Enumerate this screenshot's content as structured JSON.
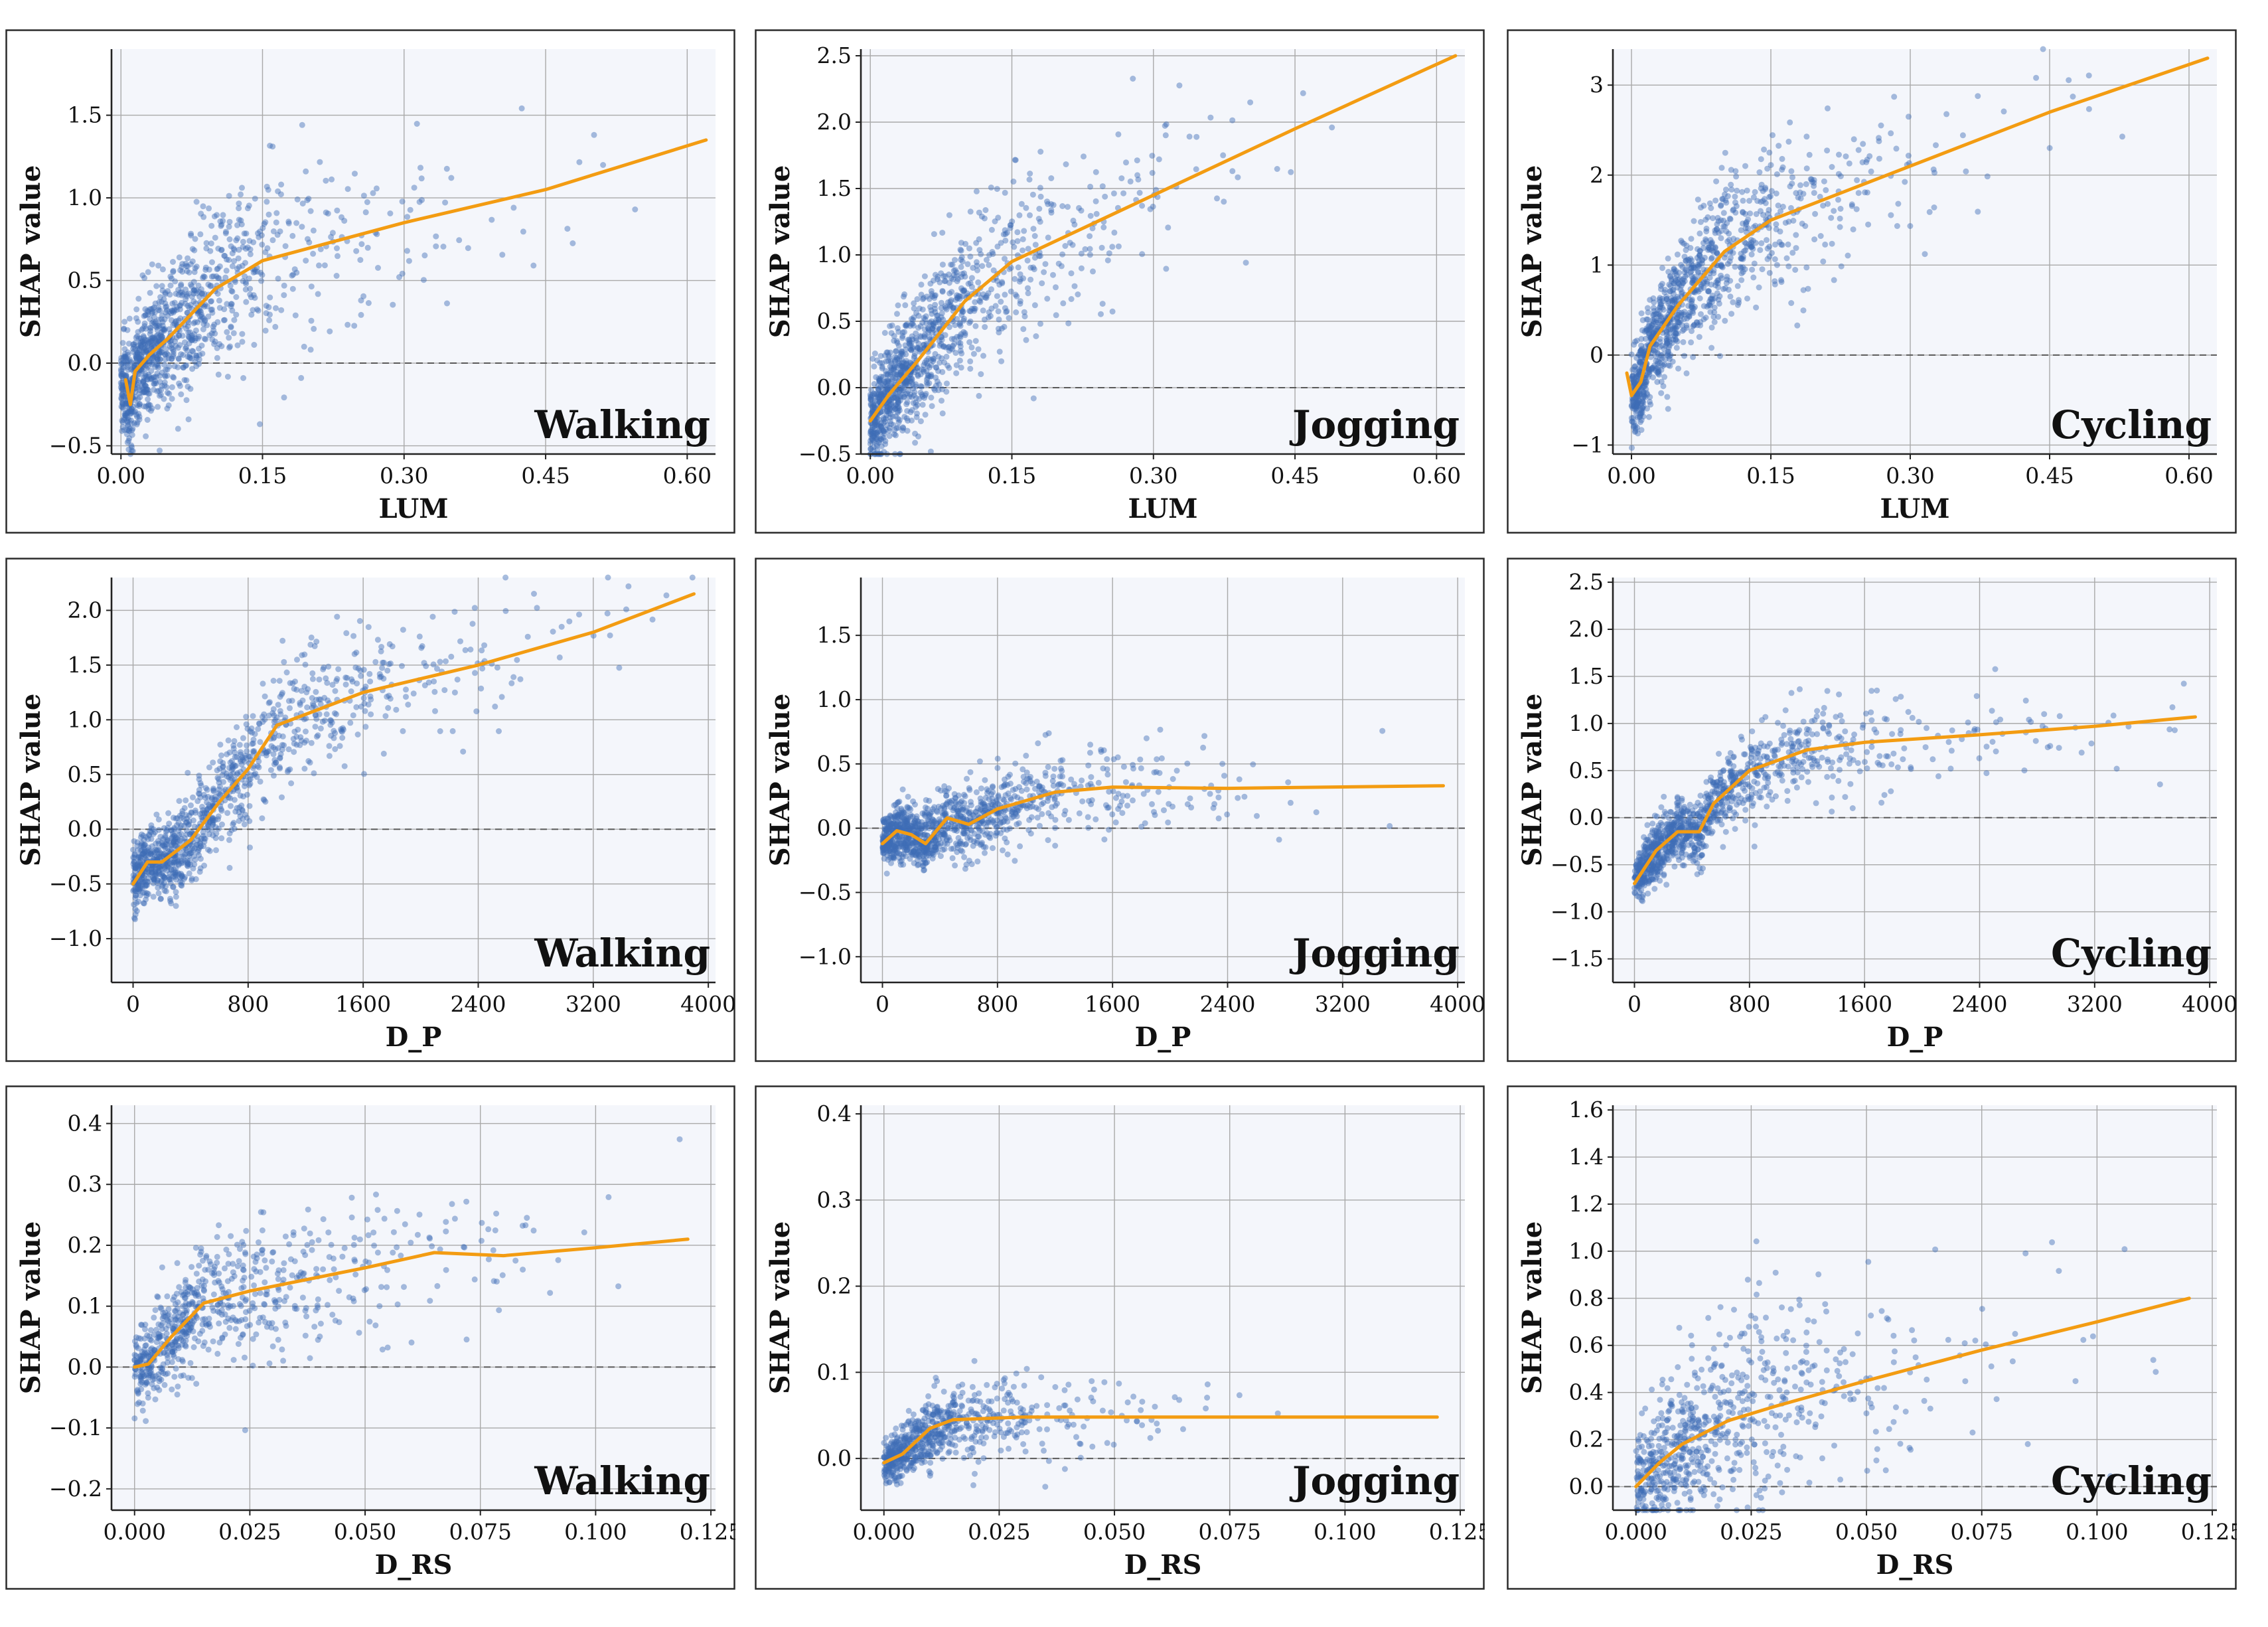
{
  "colors": {
    "points": "#3f6db6",
    "trend": "#f39c12",
    "background": "#f4f6fb"
  },
  "chart_data": [
    {
      "id": "walk-lum",
      "type": "scatter",
      "activity": "Walking",
      "xlabel": "LUM",
      "ylabel": "SHAP value",
      "xlim": [
        -0.01,
        0.63
      ],
      "ylim": [
        -0.55,
        1.9
      ],
      "xticks": [
        0.0,
        0.15,
        0.3,
        0.45,
        0.6
      ],
      "xtick_labels": [
        "0.00",
        "0.15",
        "0.30",
        "0.45",
        "0.60"
      ],
      "yticks": [
        -0.5,
        0.0,
        0.5,
        1.0,
        1.5
      ],
      "ytick_labels": [
        "−0.5",
        "0.0",
        "0.5",
        "1.0",
        "1.5"
      ],
      "trend": [
        [
          0.005,
          -0.1
        ],
        [
          0.01,
          -0.25
        ],
        [
          0.015,
          -0.05
        ],
        [
          0.03,
          0.05
        ],
        [
          0.05,
          0.15
        ],
        [
          0.1,
          0.45
        ],
        [
          0.15,
          0.62
        ],
        [
          0.3,
          0.85
        ],
        [
          0.45,
          1.05
        ],
        [
          0.62,
          1.35
        ]
      ],
      "spread": {
        "xmax": 0.62,
        "xscale": 0.08,
        "noise": 0.28,
        "count": 1100
      }
    },
    {
      "id": "jog-lum",
      "type": "scatter",
      "activity": "Jogging",
      "xlabel": "LUM",
      "ylabel": "SHAP value",
      "xlim": [
        -0.01,
        0.63
      ],
      "ylim": [
        -0.5,
        2.55
      ],
      "xticks": [
        0.0,
        0.15,
        0.3,
        0.45,
        0.6
      ],
      "xtick_labels": [
        "0.00",
        "0.15",
        "0.30",
        "0.45",
        "0.60"
      ],
      "yticks": [
        -0.5,
        0.0,
        0.5,
        1.0,
        1.5,
        2.0,
        2.5
      ],
      "ytick_labels": [
        "−0.5",
        "0.0",
        "0.5",
        "1.0",
        "1.5",
        "2.0",
        "2.5"
      ],
      "trend": [
        [
          0.0,
          -0.25
        ],
        [
          0.02,
          -0.05
        ],
        [
          0.05,
          0.2
        ],
        [
          0.1,
          0.65
        ],
        [
          0.15,
          0.95
        ],
        [
          0.3,
          1.45
        ],
        [
          0.45,
          1.95
        ],
        [
          0.62,
          2.5
        ]
      ],
      "spread": {
        "xmax": 0.62,
        "xscale": 0.08,
        "noise": 0.35,
        "count": 1100
      }
    },
    {
      "id": "cyc-lum",
      "type": "scatter",
      "activity": "Cycling",
      "xlabel": "LUM",
      "ylabel": "SHAP value",
      "xlim": [
        -0.02,
        0.63
      ],
      "ylim": [
        -1.1,
        3.4
      ],
      "xticks": [
        0.0,
        0.15,
        0.3,
        0.45,
        0.6
      ],
      "xtick_labels": [
        "0.00",
        "0.15",
        "0.30",
        "0.45",
        "0.60"
      ],
      "yticks": [
        -1,
        0,
        1,
        2,
        3
      ],
      "ytick_labels": [
        "−1",
        "0",
        "1",
        "2",
        "3"
      ],
      "trend": [
        [
          -0.005,
          -0.2
        ],
        [
          0.0,
          -0.45
        ],
        [
          0.01,
          -0.3
        ],
        [
          0.02,
          0.1
        ],
        [
          0.05,
          0.55
        ],
        [
          0.1,
          1.15
        ],
        [
          0.15,
          1.5
        ],
        [
          0.3,
          2.1
        ],
        [
          0.45,
          2.7
        ],
        [
          0.62,
          3.3
        ]
      ],
      "spread": {
        "xmax": 0.62,
        "xscale": 0.08,
        "noise": 0.45,
        "count": 1100
      }
    },
    {
      "id": "walk-dp",
      "type": "scatter",
      "activity": "Walking",
      "xlabel": "D_P",
      "ylabel": "SHAP value",
      "xlim": [
        -150,
        4050
      ],
      "ylim": [
        -1.4,
        2.3
      ],
      "xticks": [
        0,
        800,
        1600,
        2400,
        3200,
        4000
      ],
      "xtick_labels": [
        "0",
        "800",
        "1600",
        "2400",
        "3200",
        "4000"
      ],
      "yticks": [
        -1.0,
        -0.5,
        0.0,
        0.5,
        1.0,
        1.5,
        2.0
      ],
      "ytick_labels": [
        "−1.0",
        "−0.5",
        "0.0",
        "0.5",
        "1.0",
        "1.5",
        "2.0"
      ],
      "trend": [
        [
          0,
          -0.5
        ],
        [
          100,
          -0.3
        ],
        [
          200,
          -0.3
        ],
        [
          400,
          -0.1
        ],
        [
          600,
          0.25
        ],
        [
          800,
          0.55
        ],
        [
          1000,
          0.95
        ],
        [
          1600,
          1.25
        ],
        [
          2400,
          1.5
        ],
        [
          3200,
          1.8
        ],
        [
          3900,
          2.15
        ]
      ],
      "spread": {
        "xmax": 3900,
        "xscale": 650,
        "noise": 0.28,
        "count": 1100
      }
    },
    {
      "id": "jog-dp",
      "type": "scatter",
      "activity": "Jogging",
      "xlabel": "D_P",
      "ylabel": "SHAP value",
      "xlim": [
        -150,
        4050
      ],
      "ylim": [
        -1.2,
        1.95
      ],
      "xticks": [
        0,
        800,
        1600,
        2400,
        3200,
        4000
      ],
      "xtick_labels": [
        "0",
        "800",
        "1600",
        "2400",
        "3200",
        "4000"
      ],
      "yticks": [
        -1.0,
        -0.5,
        0.0,
        0.5,
        1.0,
        1.5
      ],
      "ytick_labels": [
        "−1.0",
        "−0.5",
        "0.0",
        "0.5",
        "1.0",
        "1.5"
      ],
      "trend": [
        [
          0,
          -0.12
        ],
        [
          100,
          -0.02
        ],
        [
          200,
          -0.05
        ],
        [
          300,
          -0.12
        ],
        [
          450,
          0.08
        ],
        [
          600,
          0.03
        ],
        [
          800,
          0.15
        ],
        [
          1200,
          0.28
        ],
        [
          1600,
          0.32
        ],
        [
          2400,
          0.31
        ],
        [
          3900,
          0.33
        ]
      ],
      "spread": {
        "xmax": 3900,
        "xscale": 600,
        "noise": 0.18,
        "count": 1100
      }
    },
    {
      "id": "cyc-dp",
      "type": "scatter",
      "activity": "Cycling",
      "xlabel": "D_P",
      "ylabel": "SHAP value",
      "xlim": [
        -150,
        4050
      ],
      "ylim": [
        -1.75,
        2.55
      ],
      "xticks": [
        0,
        800,
        1600,
        2400,
        3200,
        4000
      ],
      "xtick_labels": [
        "0",
        "800",
        "1600",
        "2400",
        "3200",
        "4000"
      ],
      "yticks": [
        -1.5,
        -1.0,
        -0.5,
        0.0,
        0.5,
        1.0,
        1.5,
        2.0,
        2.5
      ],
      "ytick_labels": [
        "−1.5",
        "−1.0",
        "−0.5",
        "0.0",
        "0.5",
        "1.0",
        "1.5",
        "2.0",
        "2.5"
      ],
      "trend": [
        [
          0,
          -0.7
        ],
        [
          150,
          -0.35
        ],
        [
          300,
          -0.15
        ],
        [
          450,
          -0.15
        ],
        [
          550,
          0.15
        ],
        [
          800,
          0.5
        ],
        [
          1200,
          0.72
        ],
        [
          1600,
          0.8
        ],
        [
          2400,
          0.88
        ],
        [
          3200,
          0.97
        ],
        [
          3900,
          1.07
        ]
      ],
      "spread": {
        "xmax": 3900,
        "xscale": 650,
        "noise": 0.25,
        "count": 1100
      }
    },
    {
      "id": "walk-drs",
      "type": "scatter",
      "activity": "Walking",
      "xlabel": "D_RS",
      "ylabel": "SHAP value",
      "xlim": [
        -0.005,
        0.126
      ],
      "ylim": [
        -0.235,
        0.43
      ],
      "xticks": [
        0.0,
        0.025,
        0.05,
        0.075,
        0.1,
        0.125
      ],
      "xtick_labels": [
        "0.000",
        "0.025",
        "0.050",
        "0.075",
        "0.100",
        "0.125"
      ],
      "yticks": [
        -0.2,
        -0.1,
        0.0,
        0.1,
        0.2,
        0.3,
        0.4
      ],
      "ytick_labels": [
        "−0.2",
        "−0.1",
        "0.0",
        "0.1",
        "0.2",
        "0.3",
        "0.4"
      ],
      "trend": [
        [
          0.0,
          0.0
        ],
        [
          0.003,
          0.005
        ],
        [
          0.008,
          0.05
        ],
        [
          0.015,
          0.105
        ],
        [
          0.025,
          0.125
        ],
        [
          0.05,
          0.163
        ],
        [
          0.065,
          0.188
        ],
        [
          0.08,
          0.183
        ],
        [
          0.1,
          0.196
        ],
        [
          0.12,
          0.21
        ]
      ],
      "spread": {
        "xmax": 0.12,
        "xscale": 0.02,
        "noise": 0.06,
        "count": 700
      }
    },
    {
      "id": "jog-drs",
      "type": "scatter",
      "activity": "Jogging",
      "xlabel": "D_RS",
      "ylabel": "SHAP value",
      "xlim": [
        -0.005,
        0.126
      ],
      "ylim": [
        -0.06,
        0.41
      ],
      "xticks": [
        0.0,
        0.025,
        0.05,
        0.075,
        0.1,
        0.125
      ],
      "xtick_labels": [
        "0.000",
        "0.025",
        "0.050",
        "0.075",
        "0.100",
        "0.125"
      ],
      "yticks": [
        0.0,
        0.1,
        0.2,
        0.3,
        0.4
      ],
      "ytick_labels": [
        "0.0",
        "0.1",
        "0.2",
        "0.3",
        "0.4"
      ],
      "trend": [
        [
          0.0,
          -0.005
        ],
        [
          0.004,
          0.005
        ],
        [
          0.01,
          0.035
        ],
        [
          0.015,
          0.045
        ],
        [
          0.03,
          0.048
        ],
        [
          0.05,
          0.048
        ],
        [
          0.12,
          0.048
        ]
      ],
      "spread": {
        "xmax": 0.12,
        "xscale": 0.015,
        "noise": 0.025,
        "count": 700
      }
    },
    {
      "id": "cyc-drs",
      "type": "scatter",
      "activity": "Cycling",
      "xlabel": "D_RS",
      "ylabel": "SHAP value",
      "xlim": [
        -0.005,
        0.126
      ],
      "ylim": [
        -0.1,
        1.62
      ],
      "xticks": [
        0.0,
        0.025,
        0.05,
        0.075,
        0.1,
        0.125
      ],
      "xtick_labels": [
        "0.000",
        "0.025",
        "0.050",
        "0.075",
        "0.100",
        "0.125"
      ],
      "yticks": [
        0.0,
        0.2,
        0.4,
        0.6,
        0.8,
        1.0,
        1.2,
        1.4,
        1.6
      ],
      "ytick_labels": [
        "0.0",
        "0.2",
        "0.4",
        "0.6",
        "0.8",
        "1.0",
        "1.2",
        "1.4",
        "1.6"
      ],
      "trend": [
        [
          0.0,
          0.0
        ],
        [
          0.005,
          0.1
        ],
        [
          0.01,
          0.18
        ],
        [
          0.02,
          0.28
        ],
        [
          0.03,
          0.34
        ],
        [
          0.05,
          0.45
        ],
        [
          0.075,
          0.58
        ],
        [
          0.1,
          0.7
        ],
        [
          0.12,
          0.8
        ]
      ],
      "spread": {
        "xmax": 0.12,
        "xscale": 0.02,
        "noise": 0.22,
        "count": 700
      }
    }
  ]
}
